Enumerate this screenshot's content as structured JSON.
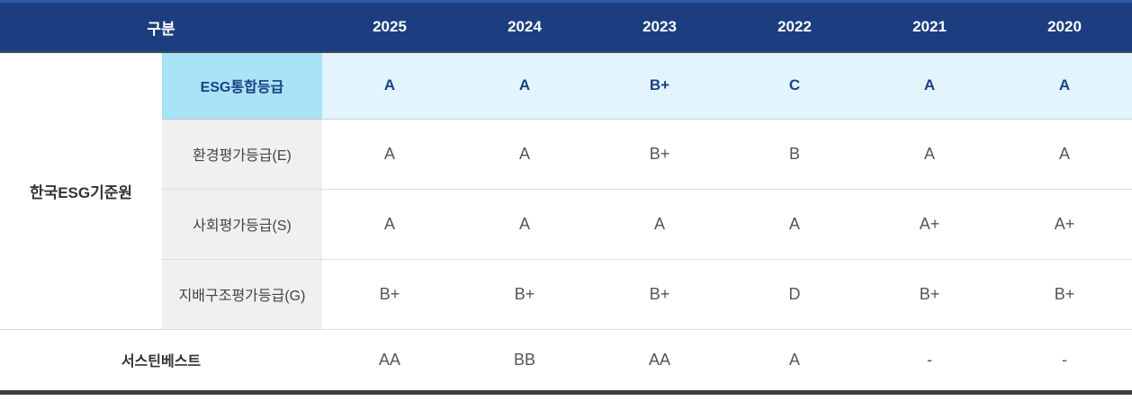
{
  "table": {
    "header": {
      "category_label": "구분",
      "years": [
        "2025",
        "2024",
        "2023",
        "2022",
        "2021",
        "2020"
      ]
    },
    "agencies": {
      "kcgs": "한국ESG기준원",
      "sustinvest": "서스틴베스트"
    },
    "rows": [
      {
        "label": "ESG통합등급",
        "values": [
          "A",
          "A",
          "B+",
          "C",
          "A",
          "A"
        ],
        "highlighted": true
      },
      {
        "label": "환경평가등급(E)",
        "values": [
          "A",
          "A",
          "B+",
          "B",
          "A",
          "A"
        ],
        "highlighted": false
      },
      {
        "label": "사회평가등급(S)",
        "values": [
          "A",
          "A",
          "A",
          "A",
          "A+",
          "A+"
        ],
        "highlighted": false
      },
      {
        "label": "지배구조평가등급(G)",
        "values": [
          "B+",
          "B+",
          "B+",
          "D",
          "B+",
          "B+"
        ],
        "highlighted": false
      },
      {
        "label": "서스틴베스트",
        "values": [
          "AA",
          "BB",
          "AA",
          "A",
          "-",
          "-"
        ],
        "highlighted": false
      }
    ],
    "colors": {
      "header_bg": "#1c3e80",
      "header_text": "#ffffff",
      "top_stripe": "#2e59a8",
      "header_bottom_border": "#3d4a5f",
      "highlight_label_bg": "#a9e3f6",
      "highlight_row_bg": "#e3f4fd",
      "highlight_text": "#1b4086",
      "metric_label_bg": "#f0f0f0",
      "label_text": "#444444",
      "value_text": "#555555",
      "row_divider": "#dddddd",
      "bottom_border": "#3f3f3f"
    }
  }
}
